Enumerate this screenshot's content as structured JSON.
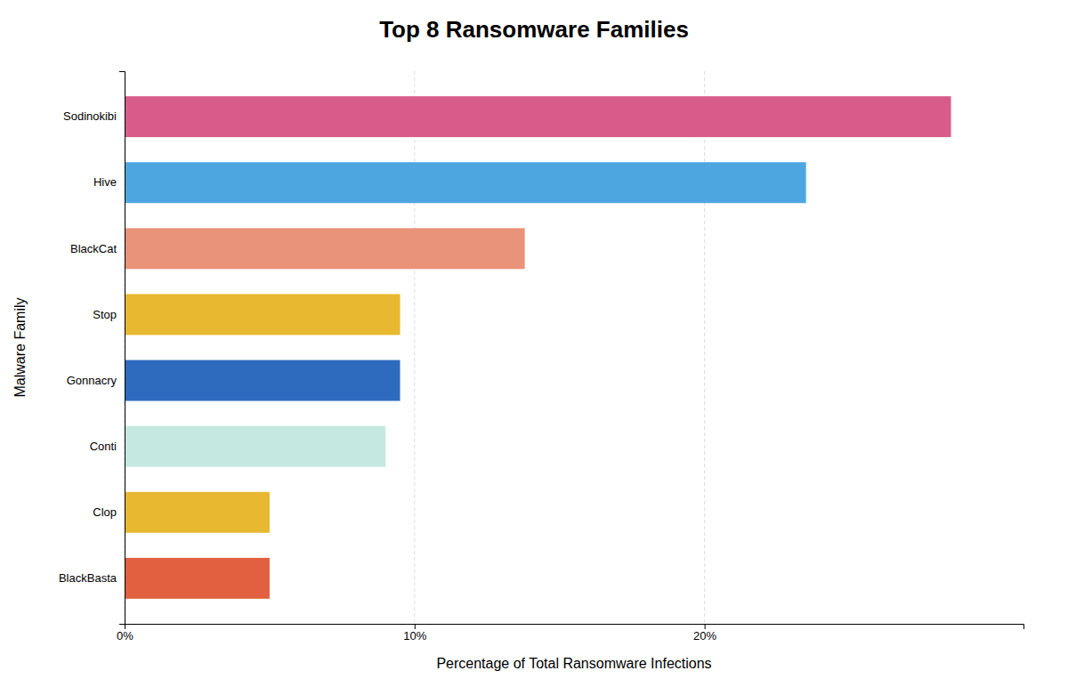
{
  "chart_data": {
    "type": "bar",
    "orientation": "horizontal",
    "title": "Top 8 Ransomware Families",
    "categories": [
      "Sodinokibi",
      "Hive",
      "BlackCat",
      "Stop",
      "Gonnacry",
      "Conti",
      "Clop",
      "BlackBasta"
    ],
    "values": [
      28.5,
      23.5,
      13.8,
      9.5,
      9.5,
      9.0,
      5.0,
      5.0
    ],
    "colors": [
      "#d85c8a",
      "#4da6e0",
      "#e8937a",
      "#e8b830",
      "#2e6bbf",
      "#c5e8e0",
      "#e8b830",
      "#e06040"
    ],
    "xlabel": "Percentage of Total Ransomware Infections",
    "ylabel": "Malware Family",
    "xlim": [
      0,
      31
    ],
    "xticks": [
      {
        "value": 0,
        "label": "0%"
      },
      {
        "value": 10,
        "label": "10%"
      },
      {
        "value": 20,
        "label": "20%"
      }
    ],
    "grid": true
  }
}
